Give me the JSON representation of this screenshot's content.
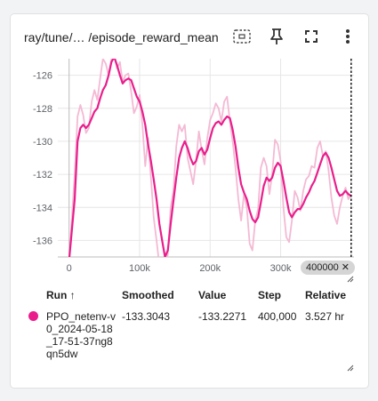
{
  "card": {
    "title": "ray/tune/… /episode_reward_mean",
    "tools": {
      "select_icon": "dashed-select-icon",
      "pin_icon": "pin-icon",
      "fullscreen_icon": "fullscreen-icon",
      "more_icon": "more-vert-icon"
    }
  },
  "chart_data": {
    "type": "line",
    "xlabel": "",
    "ylabel": "",
    "x_ticks": [
      "0",
      "100k",
      "200k",
      "300k"
    ],
    "y_ticks": [
      "-126",
      "-128",
      "-130",
      "-132",
      "-134",
      "-136"
    ],
    "xlim": [
      -16000,
      404000
    ],
    "ylim": [
      -137.0,
      -125.0
    ],
    "grid": true,
    "cursor_x": 400000,
    "cursor_label": "400000",
    "series": [
      {
        "name": "PPO_netenv-v0_2024-05-18_17-51-37ng8qn5dw",
        "kind": "raw",
        "color": "#f4b9d4",
        "x": [
          0,
          8000,
          12000,
          16000,
          20000,
          24000,
          28000,
          32000,
          36000,
          40000,
          44000,
          48000,
          52000,
          56000,
          60000,
          64000,
          68000,
          72000,
          76000,
          80000,
          84000,
          88000,
          92000,
          96000,
          100000,
          104000,
          108000,
          112000,
          116000,
          120000,
          124000,
          128000,
          132000,
          136000,
          140000,
          144000,
          148000,
          152000,
          156000,
          160000,
          164000,
          168000,
          172000,
          176000,
          180000,
          184000,
          188000,
          192000,
          196000,
          200000,
          204000,
          208000,
          212000,
          216000,
          220000,
          224000,
          228000,
          232000,
          236000,
          240000,
          244000,
          248000,
          252000,
          256000,
          260000,
          264000,
          268000,
          272000,
          276000,
          280000,
          284000,
          288000,
          292000,
          296000,
          300000,
          304000,
          308000,
          312000,
          316000,
          320000,
          324000,
          328000,
          332000,
          336000,
          340000,
          344000,
          348000,
          352000,
          356000,
          360000,
          364000,
          368000,
          372000,
          376000,
          380000,
          384000,
          388000,
          392000,
          396000,
          400000
        ],
        "y": [
          -137.2,
          -132.0,
          -128.5,
          -127.8,
          -128.4,
          -129.5,
          -129.2,
          -127.6,
          -126.9,
          -127.5,
          -126.2,
          -125.0,
          -125.3,
          -126.0,
          -125.0,
          -124.8,
          -125.6,
          -125.2,
          -126.4,
          -126.0,
          -125.9,
          -127.0,
          -128.3,
          -127.9,
          -127.2,
          -129.0,
          -131.5,
          -129.8,
          -132.2,
          -134.6,
          -136.0,
          -137.5,
          -137.2,
          -138.0,
          -136.8,
          -134.0,
          -133.0,
          -130.3,
          -129.0,
          -129.4,
          -129.0,
          -131.0,
          -131.8,
          -132.6,
          -131.2,
          -129.4,
          -130.5,
          -131.4,
          -129.8,
          -128.7,
          -128.3,
          -127.7,
          -128.0,
          -128.8,
          -127.6,
          -127.3,
          -128.8,
          -130.0,
          -131.6,
          -133.5,
          -134.8,
          -133.2,
          -134.0,
          -136.2,
          -136.6,
          -134.8,
          -134.1,
          -131.6,
          -131.0,
          -131.5,
          -133.2,
          -132.0,
          -129.9,
          -130.2,
          -131.2,
          -134.0,
          -135.8,
          -136.1,
          -134.8,
          -133.0,
          -133.4,
          -134.2,
          -133.0,
          -132.3,
          -132.1,
          -131.5,
          -131.6,
          -130.4,
          -130.0,
          -130.9,
          -130.6,
          -131.8,
          -133.4,
          -134.5,
          -135.0,
          -134.0,
          -133.3,
          -132.8,
          -133.5,
          -133.2271
        ]
      },
      {
        "name": "PPO_netenv-v0_2024-05-18_17-51-37ng8qn5dw",
        "kind": "smoothed",
        "color": "#e91e8c",
        "x": [
          0,
          8000,
          12000,
          16000,
          20000,
          24000,
          28000,
          32000,
          36000,
          40000,
          44000,
          48000,
          52000,
          56000,
          60000,
          64000,
          68000,
          72000,
          76000,
          80000,
          84000,
          88000,
          92000,
          96000,
          100000,
          104000,
          108000,
          112000,
          116000,
          120000,
          124000,
          128000,
          132000,
          136000,
          140000,
          144000,
          148000,
          152000,
          156000,
          160000,
          164000,
          168000,
          172000,
          176000,
          180000,
          184000,
          188000,
          192000,
          196000,
          200000,
          204000,
          208000,
          212000,
          216000,
          220000,
          224000,
          228000,
          232000,
          236000,
          240000,
          244000,
          248000,
          252000,
          256000,
          260000,
          264000,
          268000,
          272000,
          276000,
          280000,
          284000,
          288000,
          292000,
          296000,
          300000,
          304000,
          308000,
          312000,
          316000,
          320000,
          324000,
          328000,
          332000,
          336000,
          340000,
          344000,
          348000,
          352000,
          356000,
          360000,
          364000,
          368000,
          372000,
          376000,
          380000,
          384000,
          388000,
          392000,
          396000,
          400000
        ],
        "y": [
          -137.2,
          -133.5,
          -130.0,
          -129.2,
          -129.0,
          -129.2,
          -129.0,
          -128.6,
          -128.2,
          -128.0,
          -127.4,
          -126.9,
          -126.6,
          -126.0,
          -125.2,
          -124.9,
          -125.4,
          -126.0,
          -126.5,
          -126.3,
          -126.2,
          -126.3,
          -126.8,
          -127.3,
          -127.6,
          -128.2,
          -129.0,
          -130.2,
          -131.2,
          -132.3,
          -133.5,
          -135.0,
          -136.0,
          -137.0,
          -136.6,
          -135.0,
          -133.6,
          -132.2,
          -131.0,
          -130.4,
          -130.0,
          -130.4,
          -131.0,
          -131.4,
          -131.2,
          -130.6,
          -130.4,
          -130.8,
          -130.5,
          -129.8,
          -129.2,
          -128.9,
          -128.8,
          -129.0,
          -128.7,
          -128.5,
          -128.6,
          -129.3,
          -130.3,
          -131.6,
          -132.6,
          -133.1,
          -133.5,
          -134.2,
          -134.7,
          -134.9,
          -134.6,
          -133.7,
          -132.7,
          -132.2,
          -132.4,
          -132.2,
          -131.6,
          -131.3,
          -131.5,
          -132.4,
          -133.4,
          -134.3,
          -134.6,
          -134.3,
          -134.1,
          -134.1,
          -133.8,
          -133.4,
          -133.1,
          -132.7,
          -132.4,
          -131.9,
          -131.4,
          -130.9,
          -130.7,
          -131.0,
          -131.6,
          -132.3,
          -133.0,
          -133.3,
          -133.2,
          -133.0,
          -133.2,
          -133.3043
        ]
      }
    ]
  },
  "table": {
    "headers": {
      "run": "Run ↑",
      "smoothed": "Smoothed",
      "value": "Value",
      "step": "Step",
      "relative": "Relative"
    },
    "rows": [
      {
        "color": "#e91e8c",
        "run": "PPO_netenv-v0_2024-05-18_17-51-37ng8qn5dw",
        "smoothed": "-133.3043",
        "value": "-133.2271",
        "step": "400,000",
        "relative": "3.527 hr"
      }
    ]
  }
}
